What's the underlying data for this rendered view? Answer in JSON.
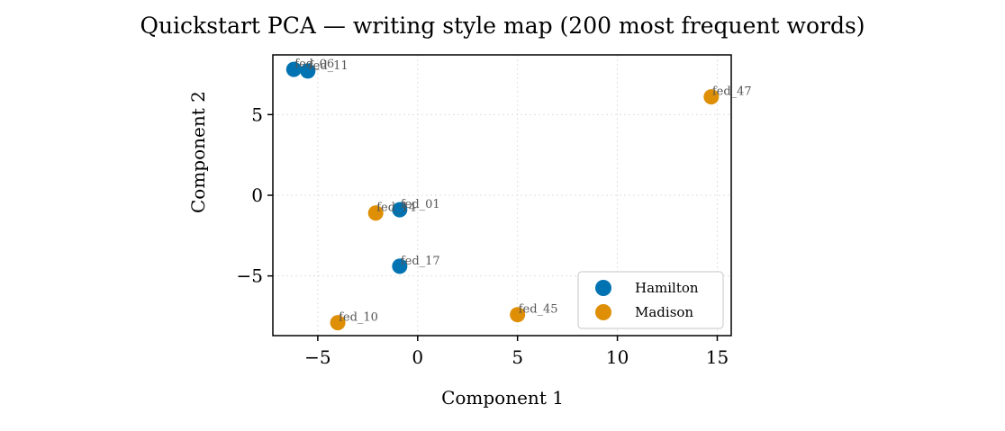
{
  "chart_data": {
    "type": "scatter",
    "title": "Quickstart PCA — writing style map (200 most frequent words)",
    "xlabel": "Component 1",
    "ylabel": "Component 2",
    "xlim": [
      -7.25,
      15.7
    ],
    "ylim": [
      -8.7,
      8.7
    ],
    "xticks": [
      -5,
      0,
      5,
      10,
      15
    ],
    "xtick_labels": [
      "−5",
      "0",
      "5",
      "10",
      "15"
    ],
    "yticks": [
      -5,
      0,
      5
    ],
    "ytick_labels": [
      "−5",
      "0",
      "5"
    ],
    "grid": true,
    "legend_position": "lower right",
    "series": [
      {
        "name": "Hamilton",
        "color": "#0173b2",
        "points": [
          {
            "label": "fed_06",
            "x": -6.2,
            "y": 7.8
          },
          {
            "label": "fed_11",
            "x": -5.5,
            "y": 7.7
          },
          {
            "label": "fed_01",
            "x": -0.9,
            "y": -0.9
          },
          {
            "label": "fed_17",
            "x": -0.9,
            "y": -4.4
          }
        ]
      },
      {
        "name": "Madison",
        "color": "#de8f05",
        "points": [
          {
            "label": "fed_47",
            "x": 14.7,
            "y": 6.1
          },
          {
            "label": "fed_14",
            "x": -2.1,
            "y": -1.1
          },
          {
            "label": "fed_10",
            "x": -4.0,
            "y": -7.9
          },
          {
            "label": "fed_45",
            "x": 5.0,
            "y": -7.4
          }
        ]
      }
    ]
  }
}
